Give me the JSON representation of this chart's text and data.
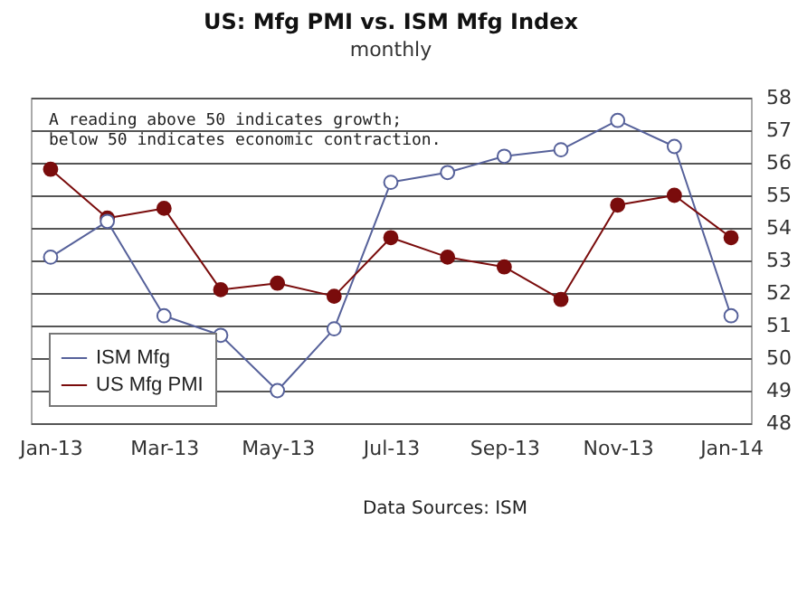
{
  "chart_data": {
    "type": "line",
    "title": "US: Mfg PMI vs. ISM Mfg Index",
    "subtitle": "monthly",
    "categories": [
      "Jan-13",
      null,
      "Mar-13",
      null,
      "May-13",
      null,
      "Jul-13",
      null,
      "Sep-13",
      null,
      "Nov-13",
      null,
      "Jan-14"
    ],
    "series": [
      {
        "name": "ISM Mfg",
        "color": "#56619a",
        "values": [
          53.1,
          54.2,
          51.3,
          50.7,
          49.0,
          50.9,
          55.4,
          55.7,
          56.2,
          56.4,
          57.3,
          56.5,
          51.3
        ]
      },
      {
        "name": "US Mfg PMI",
        "color": "#7a0c0c",
        "values": [
          55.8,
          54.3,
          54.6,
          52.1,
          52.3,
          51.9,
          53.7,
          53.1,
          52.8,
          51.8,
          54.7,
          55.0,
          53.7
        ]
      }
    ],
    "ylim": [
      48,
      58
    ],
    "yticks": [
      48,
      49,
      50,
      51,
      52,
      53,
      54,
      55,
      56,
      57,
      58
    ],
    "grid": "y",
    "legend": "bottom left",
    "marker": "circle",
    "annotations": [
      "A reading above 50 indicates growth;\nbelow 50 indicates economic contraction.",
      "Data Sources: ISM"
    ]
  }
}
